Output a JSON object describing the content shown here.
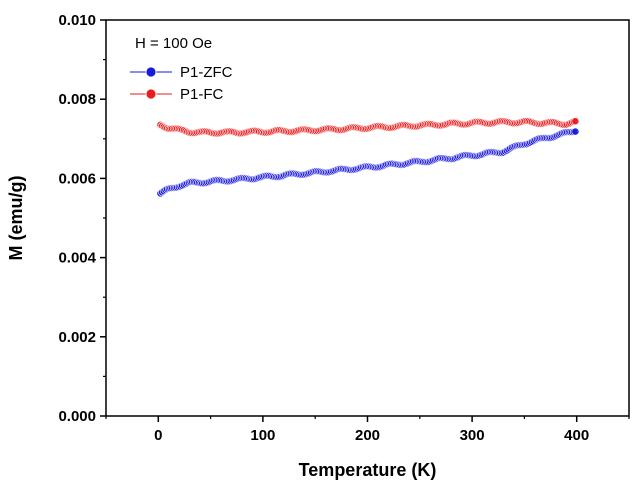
{
  "chart_data": {
    "type": "scatter",
    "title": "",
    "xlabel": "Temperature (K)",
    "ylabel": "M (emu/g)",
    "xlim": [
      -50,
      450
    ],
    "ylim": [
      0,
      0.01
    ],
    "xticks": [
      0,
      100,
      200,
      300,
      400
    ],
    "xtick_labels": [
      "0",
      "100",
      "200",
      "300",
      "400"
    ],
    "yticks": [
      0,
      0.002,
      0.004,
      0.006,
      0.008,
      0.01
    ],
    "ytick_labels": [
      "0.000",
      "0.002",
      "0.004",
      "0.006",
      "0.008",
      "0.010"
    ],
    "annotation": "H = 100 Oe",
    "legend_position": "top-left",
    "grid": false,
    "series": [
      {
        "name": "P1-ZFC",
        "color": "#1a1adb",
        "x": [
          2,
          10,
          20,
          30,
          40,
          50,
          70,
          100,
          150,
          200,
          250,
          300,
          330,
          350,
          370,
          390,
          400
        ],
        "y": [
          0.00562,
          0.00572,
          0.00582,
          0.00588,
          0.0059,
          0.00592,
          0.00596,
          0.00603,
          0.00615,
          0.00628,
          0.00642,
          0.00658,
          0.00668,
          0.00688,
          0.00702,
          0.00714,
          0.00722
        ]
      },
      {
        "name": "P1-FC",
        "color": "#e81e1e",
        "x": [
          2,
          10,
          20,
          30,
          40,
          50,
          70,
          100,
          150,
          200,
          250,
          300,
          330,
          350,
          370,
          390,
          400
        ],
        "y": [
          0.00735,
          0.00728,
          0.00722,
          0.00718,
          0.00716,
          0.00716,
          0.00716,
          0.00718,
          0.00722,
          0.00728,
          0.00734,
          0.0074,
          0.00742,
          0.00742,
          0.0074,
          0.00738,
          0.00742
        ]
      }
    ]
  }
}
